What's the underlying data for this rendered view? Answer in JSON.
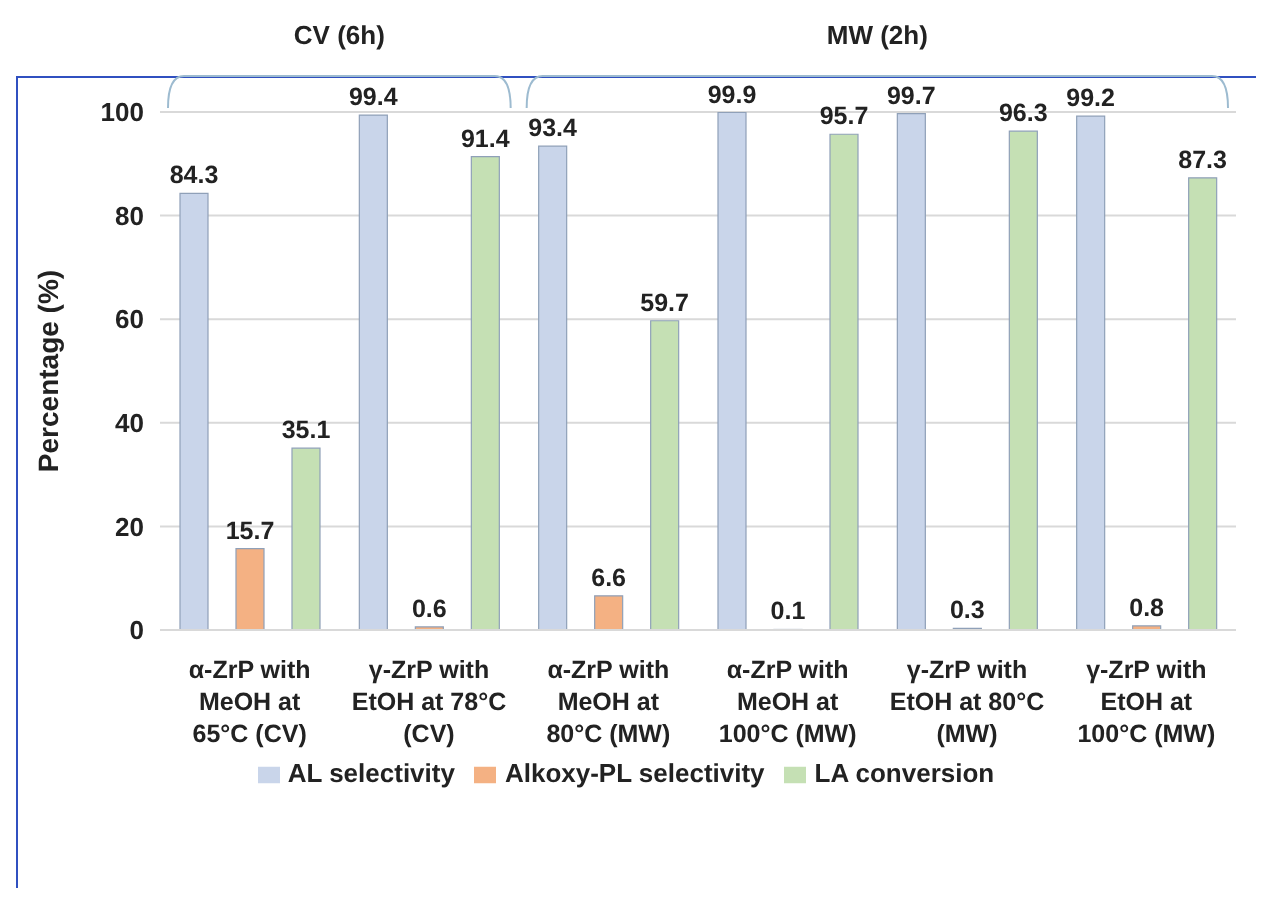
{
  "chart_data": {
    "type": "bar",
    "ylabel": "Percentage (%)",
    "categories": [
      "α-ZrP with\nMeOH at\n65°C (CV)",
      "γ-ZrP with\nEtOH at 78°C\n(CV)",
      "α-ZrP with\nMeOH at\n80°C (MW)",
      "α-ZrP with\nMeOH at\n100°C (MW)",
      "γ-ZrP with\nEtOH at 80°C\n(MW)",
      "γ-ZrP with\nEtOH at\n100°C (MW)"
    ],
    "series": [
      {
        "name": "AL selectivity",
        "color": "#c9d5ea",
        "values": [
          84.3,
          99.4,
          93.4,
          99.9,
          99.7,
          99.2
        ]
      },
      {
        "name": "Alkoxy-PL selectivity",
        "color": "#f4b183",
        "values": [
          15.7,
          0.6,
          6.6,
          0.1,
          0.3,
          0.8
        ]
      },
      {
        "name": "LA conversion",
        "color": "#c5e0b4",
        "values": [
          35.1,
          91.4,
          59.7,
          95.7,
          96.3,
          87.3
        ]
      }
    ],
    "ylim": [
      0,
      100
    ],
    "yticks": [
      0,
      20,
      40,
      60,
      80,
      100
    ],
    "grid": "y",
    "legend": "bottom",
    "data_labels": true,
    "annotations": [
      "CV (6h)",
      "MW (2h)"
    ]
  }
}
